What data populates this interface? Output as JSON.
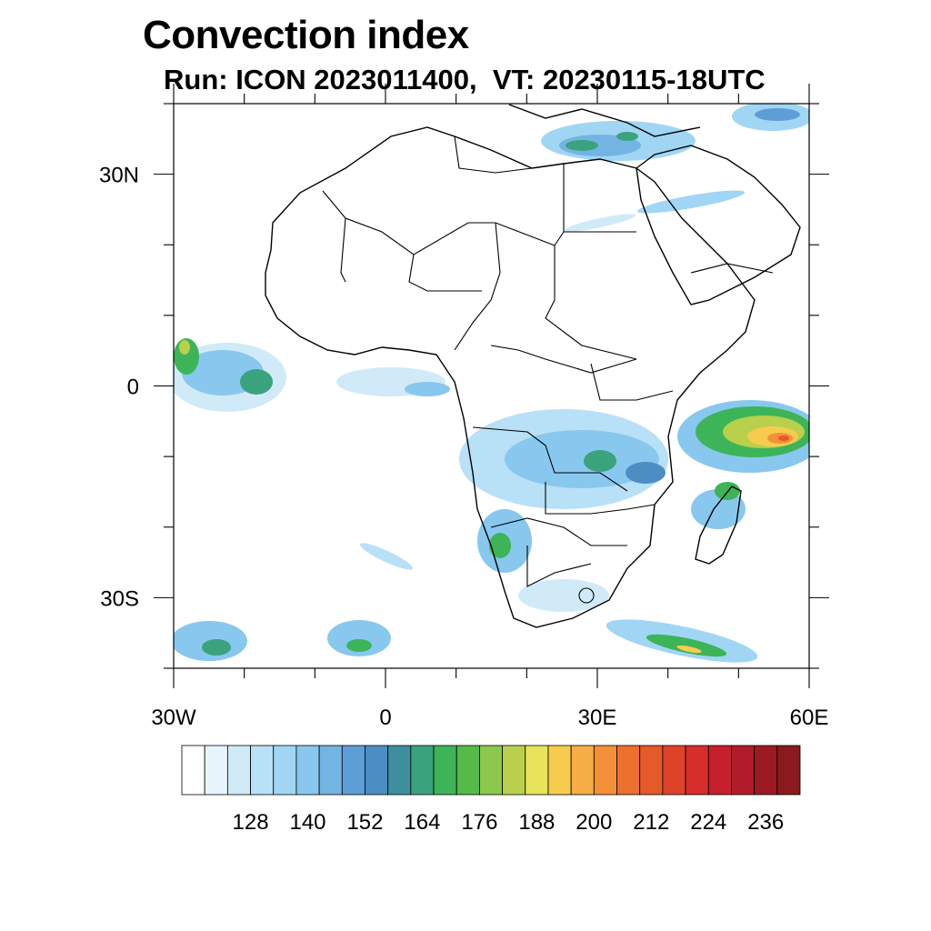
{
  "title": "Convection index",
  "subtitle": "Run: ICON 2023011400,  VT: 20230115-18UTC",
  "map": {
    "lat_labels": [
      "30N",
      "0",
      "30S"
    ],
    "lon_labels": [
      "30W",
      "0",
      "30E",
      "60E"
    ],
    "lat_values": [
      30,
      0,
      -30
    ],
    "lon_values": [
      -30,
      0,
      30,
      60
    ],
    "extent": {
      "lon_min": -30,
      "lon_max": 60,
      "lat_min": -40,
      "lat_max": 40
    }
  },
  "colorbar": {
    "tick_labels": [
      "128",
      "140",
      "152",
      "164",
      "176",
      "188",
      "200",
      "212",
      "224",
      "236"
    ],
    "colors": [
      "#ffffff",
      "#e8f4fc",
      "#d0eaf8",
      "#b8e0f6",
      "#a0d6f4",
      "#88c8ee",
      "#74b4e2",
      "#5e9ed6",
      "#4c8ec4",
      "#3e8e9e",
      "#3aa37e",
      "#3db458",
      "#56ba48",
      "#8cc84c",
      "#b8d04c",
      "#e8e35a",
      "#f7cc4e",
      "#f6ae44",
      "#f39038",
      "#ec702e",
      "#e45a28",
      "#de4228",
      "#d62e2a",
      "#c6202c",
      "#b01c2a",
      "#9c1a24",
      "#8a1a1e"
    ]
  }
}
